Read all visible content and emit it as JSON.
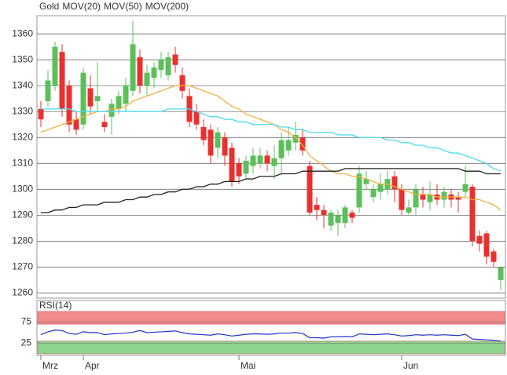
{
  "chart_data": [
    {
      "type": "candlestick",
      "name": "Gold",
      "color": "#e8312f",
      "up_color": "#5cbf5c",
      "down_color": "#e8312f",
      "categories": [
        "Mrz",
        null,
        null,
        null,
        null,
        null,
        "Apr",
        null,
        null,
        null,
        null,
        null,
        null,
        null,
        null,
        null,
        null,
        null,
        null,
        null,
        null,
        null,
        null,
        null,
        null,
        null,
        null,
        null,
        "Mai",
        null,
        null,
        null,
        null,
        null,
        null,
        null,
        null,
        null,
        null,
        null,
        null,
        null,
        null,
        null,
        null,
        null,
        null,
        null,
        null,
        null,
        null,
        "Jun",
        null,
        null,
        null,
        null,
        null,
        null,
        null,
        null,
        null,
        null,
        null,
        null,
        null,
        null
      ],
      "open": [
        1331,
        1334,
        1340,
        1353,
        1340,
        1327,
        1325,
        1339,
        1334,
        1326,
        1328,
        1331,
        1333,
        1338,
        1351,
        1340,
        1343,
        1346,
        1344,
        1352,
        1344,
        1336,
        1330,
        1324,
        1323,
        1316,
        1320,
        1316,
        1310,
        1306,
        1309,
        1310,
        1313,
        1309,
        1312,
        1315,
        1318,
        1320,
        1309,
        1294,
        1292,
        1286,
        1287,
        1287,
        1291,
        1293,
        1302,
        1297,
        1299,
        1300,
        1305,
        1300,
        1291,
        1293,
        1298,
        1295,
        1298,
        1296,
        1298,
        1297,
        1299,
        1301,
        1282,
        1283,
        1276,
        1265
      ],
      "high": [
        1334,
        1346,
        1357,
        1356,
        1342,
        1330,
        1347,
        1344,
        1349,
        1329,
        1335,
        1338,
        1343,
        1365,
        1354,
        1348,
        1349,
        1353,
        1353,
        1355,
        1347,
        1339,
        1333,
        1327,
        1325,
        1324,
        1322,
        1318,
        1312,
        1313,
        1316,
        1316,
        1315,
        1317,
        1322,
        1324,
        1326,
        1323,
        1311,
        1297,
        1294,
        1292,
        1292,
        1294,
        1292,
        1309,
        1307,
        1302,
        1306,
        1307,
        1307,
        1302,
        1296,
        1302,
        1301,
        1303,
        1302,
        1301,
        1300,
        1299,
        1309,
        1302,
        1284,
        1284,
        1277,
        1270
      ],
      "low": [
        1324,
        1332,
        1338,
        1328,
        1322,
        1321,
        1323,
        1329,
        1330,
        1322,
        1321,
        1329,
        1330,
        1336,
        1337,
        1336,
        1339,
        1343,
        1342,
        1345,
        1335,
        1324,
        1323,
        1317,
        1310,
        1312,
        1309,
        1301,
        1302,
        1304,
        1306,
        1308,
        1307,
        1304,
        1306,
        1313,
        1315,
        1313,
        1290,
        1288,
        1285,
        1284,
        1282,
        1285,
        1287,
        1291,
        1300,
        1295,
        1296,
        1298,
        1295,
        1290,
        1290,
        1290,
        1293,
        1292,
        1294,
        1293,
        1293,
        1291,
        1297,
        1278,
        1276,
        1271,
        1270,
        1261
      ],
      "close": [
        1327,
        1342,
        1355,
        1331,
        1325,
        1323,
        1345,
        1332,
        1336,
        1324,
        1333,
        1336,
        1340,
        1356,
        1340,
        1345,
        1347,
        1350,
        1351,
        1348,
        1338,
        1326,
        1325,
        1319,
        1313,
        1322,
        1313,
        1303,
        1305,
        1311,
        1313,
        1313,
        1310,
        1312,
        1319,
        1319,
        1321,
        1315,
        1291,
        1292,
        1290,
        1291,
        1290,
        1293,
        1289,
        1306,
        1304,
        1300,
        1302,
        1304,
        1300,
        1292,
        1293,
        1300,
        1296,
        1298,
        1296,
        1299,
        1296,
        1296,
        1302,
        1280,
        1279,
        1274,
        1272,
        1270
      ],
      "overlays": [
        {
          "name": "MOV(20)",
          "color": "#f5b041",
          "values": [
            1322,
            1323,
            1324,
            1325,
            1326,
            1327,
            1328,
            1329,
            1330,
            1330,
            1331,
            1331,
            1332,
            1334,
            1335,
            1336,
            1337,
            1338,
            1339,
            1340,
            1340,
            1340,
            1339,
            1338,
            1337,
            1336,
            1334,
            1332,
            1331,
            1329,
            1328,
            1327,
            1326,
            1325,
            1323,
            1322,
            1320,
            1317,
            1313,
            1311,
            1309,
            1307,
            1306,
            1306,
            1305,
            1305,
            1304,
            1303,
            1302,
            1302,
            1301,
            1300,
            1299,
            1298,
            1298,
            1298,
            1297,
            1297,
            1297,
            1297,
            1297,
            1296,
            1296,
            1295,
            1294,
            1292
          ]
        },
        {
          "name": "MOV(50)",
          "color": "#4dd9f0",
          "values": [
            1331,
            1331,
            1331,
            1331,
            1331,
            1330,
            1330,
            1330,
            1330,
            1330,
            1330,
            1330,
            1330,
            1330,
            1330,
            1330,
            1330,
            1330,
            1331,
            1331,
            1331,
            1331,
            1330,
            1329,
            1328,
            1328,
            1327,
            1327,
            1326,
            1326,
            1325,
            1325,
            1325,
            1325,
            1324,
            1324,
            1323,
            1323,
            1322,
            1322,
            1322,
            1322,
            1321,
            1321,
            1321,
            1320,
            1320,
            1320,
            1320,
            1319,
            1319,
            1318,
            1318,
            1317,
            1317,
            1316,
            1316,
            1315,
            1314,
            1314,
            1313,
            1312,
            1311,
            1310,
            1308,
            1307
          ]
        },
        {
          "name": "MOV(200)",
          "color": "#222222",
          "values": [
            1291,
            1291,
            1292,
            1292,
            1293,
            1293,
            1294,
            1294,
            1294,
            1295,
            1295,
            1295,
            1296,
            1296,
            1297,
            1297,
            1298,
            1298,
            1299,
            1299,
            1300,
            1300,
            1301,
            1301,
            1302,
            1302,
            1303,
            1303,
            1303,
            1304,
            1304,
            1305,
            1305,
            1305,
            1306,
            1306,
            1306,
            1307,
            1307,
            1307,
            1307,
            1307,
            1307,
            1308,
            1308,
            1308,
            1308,
            1308,
            1308,
            1308,
            1308,
            1308,
            1308,
            1308,
            1308,
            1308,
            1308,
            1308,
            1308,
            1308,
            1307,
            1307,
            1307,
            1306,
            1306,
            1306
          ]
        }
      ],
      "ylim": [
        1258,
        1367
      ],
      "yticks": [
        1260,
        1270,
        1280,
        1290,
        1300,
        1310,
        1320,
        1330,
        1340,
        1350,
        1360
      ],
      "grid": true
    },
    {
      "type": "line",
      "series": [
        {
          "name": "RSI(14)",
          "color": "#2233cc",
          "values": [
            45,
            52,
            56,
            55,
            48,
            46,
            52,
            50,
            50,
            45,
            47,
            48,
            49,
            51,
            55,
            50,
            51,
            52,
            53,
            54,
            50,
            47,
            46,
            45,
            44,
            47,
            45,
            42,
            44,
            46,
            47,
            47,
            46,
            47,
            49,
            49,
            50,
            48,
            38,
            38,
            37,
            40,
            40,
            41,
            40,
            47,
            46,
            45,
            46,
            47,
            45,
            42,
            43,
            45,
            44,
            45,
            44,
            45,
            44,
            43,
            46,
            35,
            34,
            33,
            32,
            30
          ]
        }
      ],
      "bands": [
        {
          "range": [
            70,
            100
          ],
          "color": "#f28b8b"
        },
        {
          "range": [
            0,
            30
          ],
          "color": "#8fd48f"
        }
      ],
      "ylim": [
        0,
        100
      ],
      "yticks": [
        25,
        75
      ],
      "grid": true
    }
  ]
}
